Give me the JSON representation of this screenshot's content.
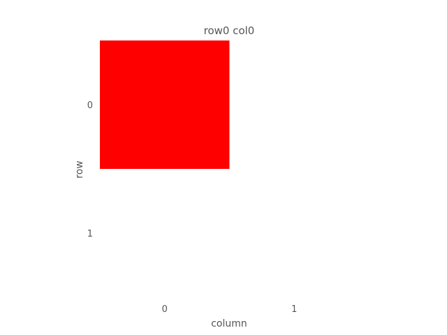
{
  "chart_data": {
    "type": "heatmap",
    "title": "row0 col0",
    "xlabel": "column",
    "ylabel": "row",
    "x_categories": [
      "0",
      "1"
    ],
    "y_categories": [
      "0",
      "1"
    ],
    "cells": [
      {
        "row": 0,
        "col": 0,
        "color": "#ff0000"
      },
      {
        "row": 0,
        "col": 1,
        "color": "#ffffff"
      },
      {
        "row": 1,
        "col": 0,
        "color": "#ffffff"
      },
      {
        "row": 1,
        "col": 1,
        "color": "#ffffff"
      }
    ],
    "grid": false
  }
}
